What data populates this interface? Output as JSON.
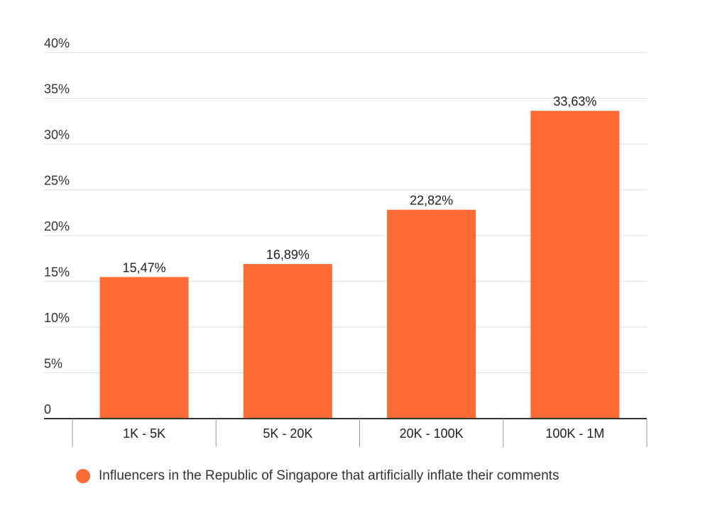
{
  "chart_data": {
    "type": "bar",
    "categories": [
      "1K - 5K",
      "5K - 20K",
      "20K - 100K",
      "100K - 1M"
    ],
    "series": [
      {
        "name": "Influencers in the Republic of Singapore that artificially inflate their comments",
        "values": [
          15.47,
          16.89,
          22.82,
          33.63
        ],
        "data_labels": [
          "15,47%",
          "16,89%",
          "22,82%",
          "33,63%"
        ],
        "color": "#ff6b35"
      }
    ],
    "y_ticks": [
      {
        "value": 0,
        "label": "0"
      },
      {
        "value": 5,
        "label": "5%"
      },
      {
        "value": 10,
        "label": "10%"
      },
      {
        "value": 15,
        "label": "15%"
      },
      {
        "value": 20,
        "label": "20%"
      },
      {
        "value": 25,
        "label": "25%"
      },
      {
        "value": 30,
        "label": "30%"
      },
      {
        "value": 35,
        "label": "35%"
      },
      {
        "value": 40,
        "label": "40%"
      }
    ],
    "ylim": [
      0,
      40
    ],
    "grid": true,
    "legend_position": "bottom",
    "title": "",
    "xlabel": "",
    "ylabel": ""
  },
  "legend": {
    "label": "Influencers in the Republic of Singapore that artificially inflate their comments",
    "color": "#ff6b35"
  }
}
